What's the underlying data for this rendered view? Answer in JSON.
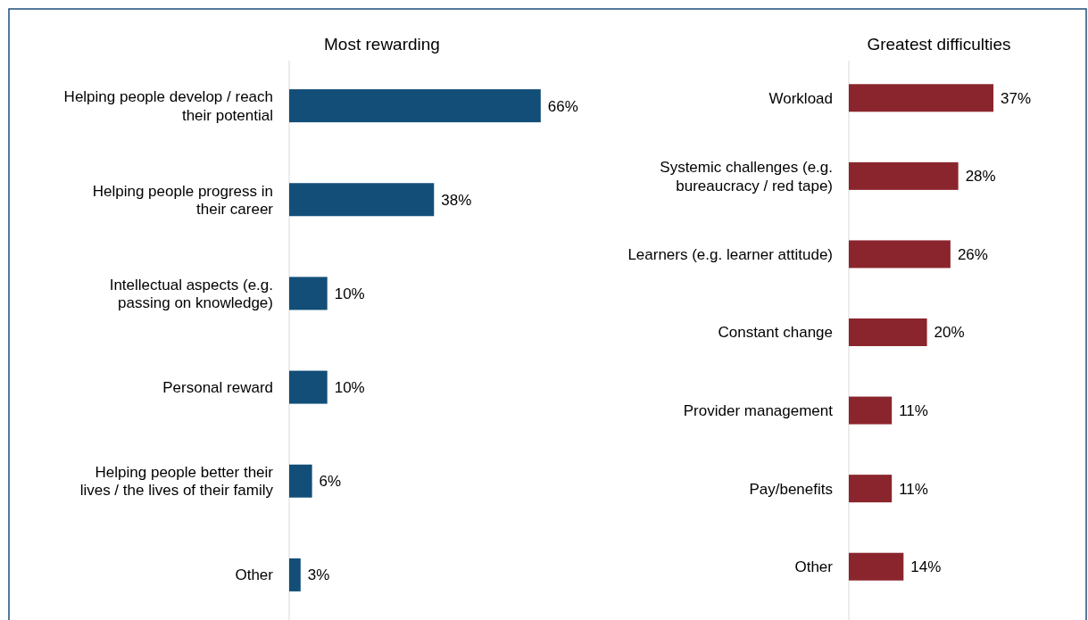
{
  "chart_data": [
    {
      "type": "bar",
      "orientation": "horizontal",
      "title": "Most rewarding",
      "categories": [
        "Helping people develop / reach\ntheir potential",
        "Helping people progress in\ntheir career",
        "Intellectual aspects (e.g.\npassing on knowledge)",
        "Personal reward",
        "Helping people better their\nlives / the lives of their family",
        "Other"
      ],
      "values": [
        66,
        38,
        10,
        10,
        6,
        3
      ],
      "color": "#124e78",
      "data_labels": true,
      "value_labels": [
        "66%",
        "38%",
        "10%",
        "10%",
        "6%",
        "3%"
      ]
    },
    {
      "type": "bar",
      "orientation": "horizontal",
      "title": "Greatest difficulties",
      "categories": [
        "Workload",
        "Systemic challenges (e.g.\nbureaucracy / red tape)",
        "Learners (e.g. learner attitude)",
        "Constant change",
        "Provider management",
        "Pay/benefits",
        "Other"
      ],
      "values": [
        37,
        28,
        26,
        20,
        11,
        11,
        14
      ],
      "color": "#8b252d",
      "data_labels": true,
      "value_labels": [
        "37%",
        "28%",
        "26%",
        "20%",
        "11%",
        "11%",
        "14%"
      ]
    }
  ]
}
